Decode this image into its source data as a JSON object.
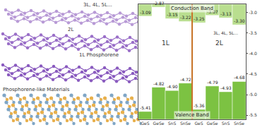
{
  "diagram": {
    "labels": [
      "3L, 4L, 5L...",
      "2L",
      "1L Phosphorene",
      "Phosphorene-like Materials"
    ]
  },
  "chart_data": {
    "type": "bar",
    "categories": [
      "GeS",
      "GeSe",
      "SnS",
      "SnSe",
      "GeS",
      "GeSe",
      "SnS",
      "SnSe"
    ],
    "groups": [
      "1L",
      "2L"
    ],
    "series": [
      {
        "name": "Conduction Band",
        "color": "#b9de8f",
        "values": [
          -3.09,
          -2.87,
          -3.15,
          -3.22,
          -3.25,
          -3.07,
          -3.13,
          -3.3
        ],
        "value_labels": [
          "-3.09",
          "-2.87",
          "-3.15",
          "-3.22",
          "-3.25",
          "-3.07",
          "-3.13",
          "-3.30"
        ]
      },
      {
        "name": "Valence Band",
        "color": "#7cc242",
        "values": [
          -5.41,
          -4.82,
          -4.9,
          -4.72,
          -5.36,
          -4.79,
          -4.93,
          -4.68
        ],
        "value_labels": [
          "-5.41",
          "-4.82",
          "-4.90",
          "-4.72",
          "-5.36",
          "-4.79",
          "-4.93",
          "-4.68"
        ]
      }
    ],
    "annotations": [
      "3L, 4L, 5L..."
    ],
    "ylim": [
      -5.6,
      -2.8
    ],
    "yticks": [
      {
        "value": -3,
        "label": "-3.0"
      },
      {
        "value": -3.5,
        "label": "-3.5"
      },
      {
        "value": -4,
        "label": "-4.0"
      },
      {
        "value": -4.5,
        "label": "-4.5"
      },
      {
        "value": -5,
        "label": "-5.0"
      },
      {
        "value": -5.5,
        "label": "-5.5"
      }
    ],
    "data_labels": true,
    "grid": false
  }
}
